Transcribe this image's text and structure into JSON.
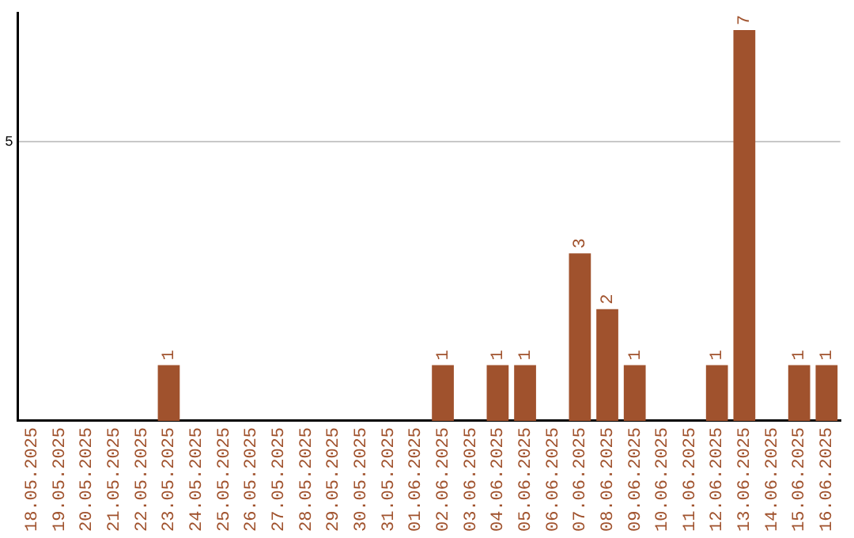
{
  "chart_data": {
    "type": "bar",
    "categories": [
      "18.05.2025",
      "19.05.2025",
      "20.05.2025",
      "21.05.2025",
      "22.05.2025",
      "23.05.2025",
      "24.05.2025",
      "25.05.2025",
      "26.05.2025",
      "27.05.2025",
      "28.05.2025",
      "29.05.2025",
      "30.05.2025",
      "31.05.2025",
      "01.06.2025",
      "02.06.2025",
      "03.06.2025",
      "04.06.2025",
      "05.06.2025",
      "06.06.2025",
      "07.06.2025",
      "08.06.2025",
      "09.06.2025",
      "10.06.2025",
      "11.06.2025",
      "12.06.2025",
      "13.06.2025",
      "14.06.2025",
      "15.06.2025",
      "16.06.2025"
    ],
    "values": [
      0,
      0,
      0,
      0,
      0,
      1,
      0,
      0,
      0,
      0,
      0,
      0,
      0,
      0,
      0,
      1,
      0,
      1,
      1,
      0,
      3,
      2,
      1,
      0,
      0,
      1,
      7,
      0,
      1,
      1
    ],
    "value_labels": [
      null,
      null,
      null,
      null,
      null,
      "1",
      null,
      null,
      null,
      null,
      null,
      null,
      null,
      null,
      null,
      "1",
      null,
      "1",
      "1",
      null,
      "3",
      "2",
      "1",
      null,
      null,
      "1",
      "7",
      null,
      "1",
      "1"
    ],
    "color": "#a0522d",
    "ylim": [
      0,
      7.3
    ],
    "yticks": [
      5
    ],
    "grid": "y",
    "legend": false
  }
}
